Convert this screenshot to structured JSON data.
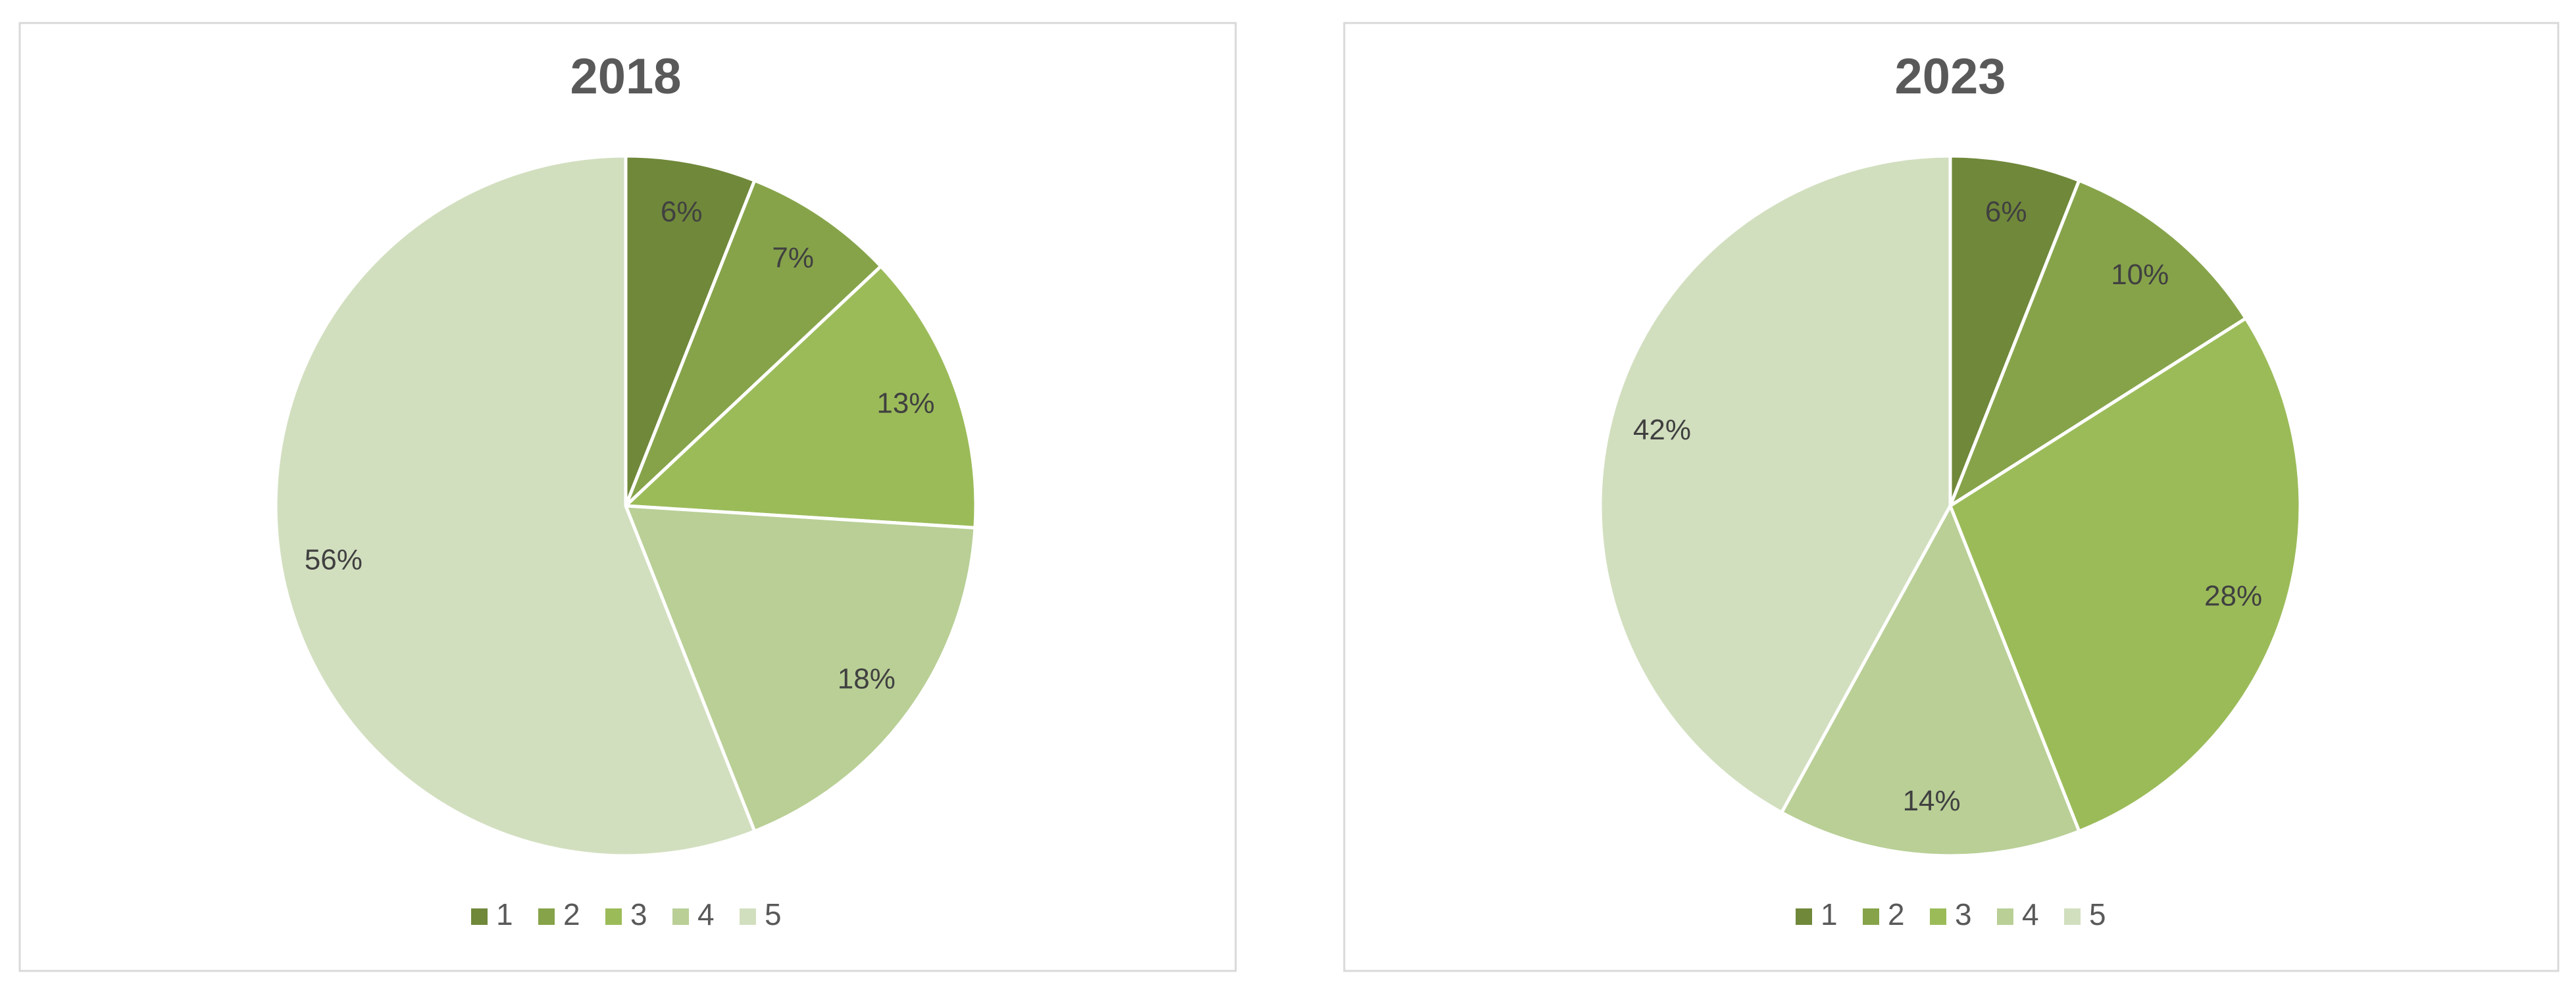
{
  "chart_data": [
    {
      "type": "pie",
      "title": "2018",
      "categories": [
        "1",
        "2",
        "3",
        "4",
        "5"
      ],
      "values": [
        6,
        7,
        13,
        18,
        56
      ],
      "value_labels": [
        "6%",
        "7%",
        "13%",
        "18%",
        "56%"
      ],
      "colors": [
        "#70883a",
        "#86a34a",
        "#9bbb59",
        "#b9cf96",
        "#d2dfbf"
      ],
      "legend": "bottom"
    },
    {
      "type": "pie",
      "title": "2023",
      "categories": [
        "1",
        "2",
        "3",
        "4",
        "5"
      ],
      "values": [
        6,
        10,
        28,
        14,
        42
      ],
      "value_labels": [
        "6%",
        "10%",
        "28%",
        "14%",
        "42%"
      ],
      "colors": [
        "#70883a",
        "#86a34a",
        "#9bbb59",
        "#b9cf96",
        "#d2dfbf"
      ],
      "legend": "bottom"
    }
  ]
}
